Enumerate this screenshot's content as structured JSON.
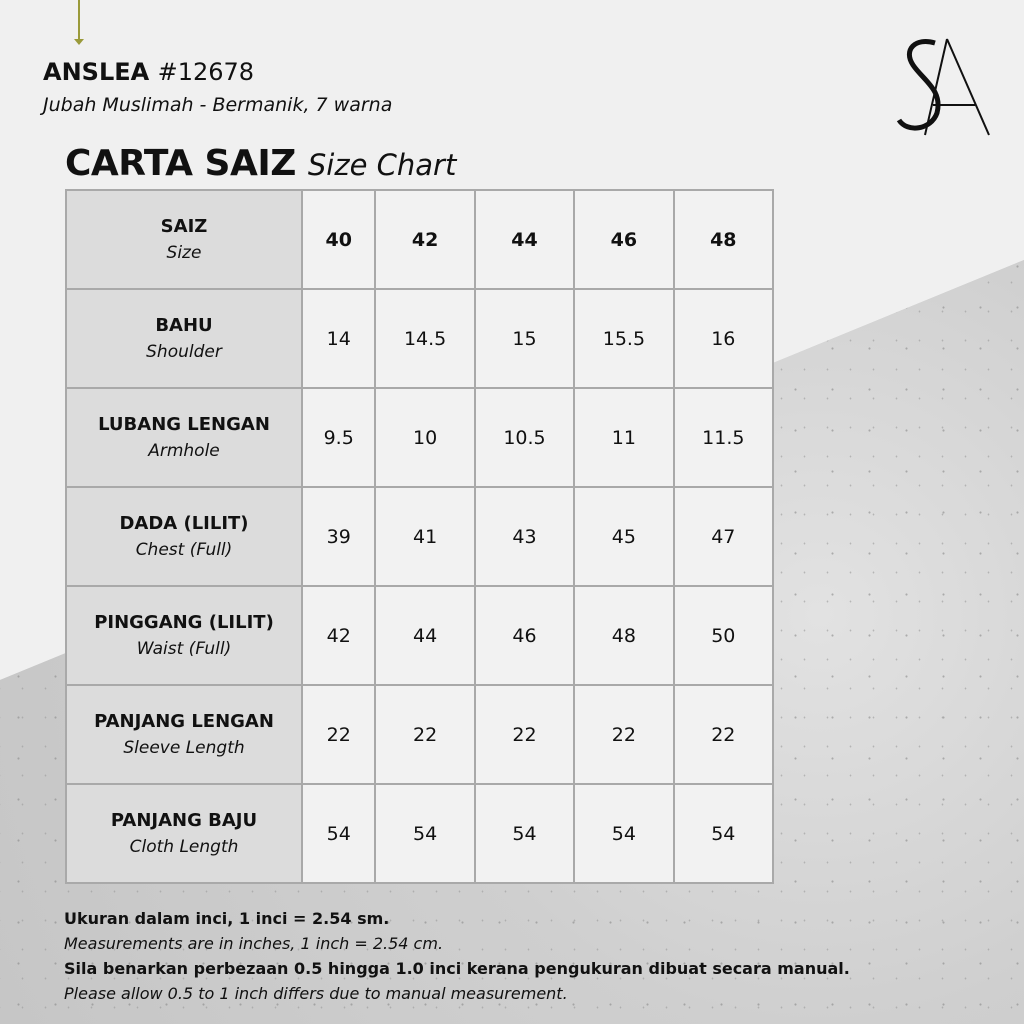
{
  "header": {
    "brand": "ANSLEA",
    "code": "#12678",
    "subtitle": "Jubah Muslimah - Bermanik, 7 warna",
    "logo_text": "SA"
  },
  "title": {
    "main": "CARTA SAIZ",
    "sub": "Size Chart"
  },
  "table": {
    "header": {
      "label": "SAIZ",
      "label_en": "Size",
      "sizes": [
        "40",
        "42",
        "44",
        "46",
        "48"
      ]
    },
    "rows": [
      {
        "label": "BAHU",
        "label_en": "Shoulder",
        "values": [
          "14",
          "14.5",
          "15",
          "15.5",
          "16"
        ]
      },
      {
        "label": "LUBANG LENGAN",
        "label_en": "Armhole",
        "values": [
          "9.5",
          "10",
          "10.5",
          "11",
          "11.5"
        ]
      },
      {
        "label": "DADA (LILIT)",
        "label_en": "Chest (Full)",
        "values": [
          "39",
          "41",
          "43",
          "45",
          "47"
        ]
      },
      {
        "label": "PINGGANG (LILIT)",
        "label_en": "Waist (Full)",
        "values": [
          "42",
          "44",
          "46",
          "48",
          "50"
        ]
      },
      {
        "label": "PANJANG LENGAN",
        "label_en": "Sleeve Length",
        "values": [
          "22",
          "22",
          "22",
          "22",
          "22"
        ]
      },
      {
        "label": "PANJANG BAJU",
        "label_en": "Cloth Length",
        "values": [
          "54",
          "54",
          "54",
          "54",
          "54"
        ]
      }
    ]
  },
  "notes": [
    "Ukuran dalam inci, 1 inci = 2.54 sm.",
    "Measurements are in inches, 1 inch = 2.54 cm.",
    "Sila benarkan perbezaan 0.5 hingga 1.0 inci kerana pengukuran dibuat secara manual.",
    "Please allow 0.5 to 1 inch differs due to manual measurement."
  ]
}
